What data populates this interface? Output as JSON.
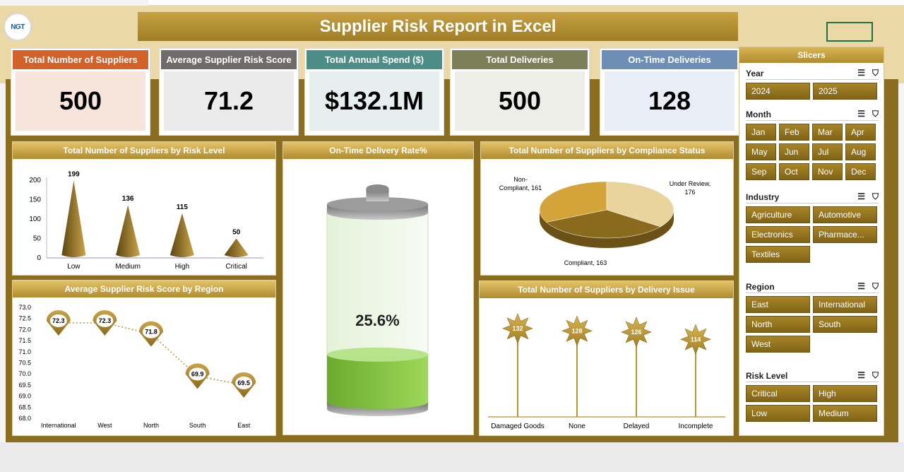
{
  "title": "Supplier Risk Report in Excel",
  "logo_text": "NGT",
  "kpis": [
    {
      "label": "Total Number of Suppliers",
      "value": "500",
      "header_color": "#d2612a",
      "bg": "#f7e4db"
    },
    {
      "label": "Average Supplier Risk Score",
      "value": "71.2",
      "header_color": "#706a6a",
      "bg": "#ebebeb"
    },
    {
      "label": "Total Annual Spend ($)",
      "value": "$132.1M",
      "header_color": "#4c8d88",
      "bg": "#e6efee"
    },
    {
      "label": "Total Deliveries",
      "value": "500",
      "header_color": "#7d7f58",
      "bg": "#edeee7"
    },
    {
      "label": "On-Time Deliveries",
      "value": "128",
      "header_color": "#6e8fb5",
      "bg": "#e9eef6"
    }
  ],
  "panels": {
    "risk_level": "Total Number of Suppliers by Risk Level",
    "ontime": "On-Time Delivery Rate%",
    "compliance": "Total Number of Suppliers by Compliance Status",
    "region": "Average Supplier Risk Score by Region",
    "delivery_issue": "Total Number of Suppliers by Delivery Issue"
  },
  "chart_data": [
    {
      "type": "bar",
      "categories": [
        "Low",
        "Medium",
        "High",
        "Critical"
      ],
      "values": [
        199,
        136,
        115,
        50
      ],
      "ylim": [
        0,
        200
      ],
      "yticks": [
        "0",
        "50",
        "100",
        "150",
        "200"
      ]
    },
    {
      "type": "gauge",
      "value": 0.256,
      "label": "25.6%"
    },
    {
      "type": "pie",
      "slices": [
        {
          "label": "Non-Compliant, 161",
          "value": 161,
          "color": "#d2a43a"
        },
        {
          "label": "Under Review, 176",
          "value": 176,
          "color": "#e8d49c"
        },
        {
          "label": "Compliant, 163",
          "value": 163,
          "color": "#8a6a1d"
        }
      ]
    },
    {
      "type": "line",
      "categories": [
        "International",
        "West",
        "North",
        "South",
        "East"
      ],
      "values": [
        72.3,
        72.3,
        71.8,
        69.9,
        69.5
      ],
      "ylim": [
        68.0,
        73.0
      ],
      "yticks": [
        "68.0",
        "68.5",
        "69.0",
        "69.5",
        "70.0",
        "70.5",
        "71.0",
        "71.5",
        "72.0",
        "72.5",
        "73.0"
      ]
    },
    {
      "type": "bar",
      "categories": [
        "Damaged Goods",
        "None",
        "Delayed",
        "Incomplete"
      ],
      "values": [
        132,
        128,
        126,
        114
      ]
    }
  ],
  "slicers": {
    "title": "Slicers",
    "groups": [
      {
        "name": "Year",
        "items": [
          "2024",
          "2025"
        ],
        "size": "w2"
      },
      {
        "name": "Month",
        "items": [
          "Jan",
          "Feb",
          "Mar",
          "Apr",
          "May",
          "Jun",
          "Jul",
          "Aug",
          "Sep",
          "Oct",
          "Nov",
          "Dec"
        ],
        "size": "w4"
      },
      {
        "name": "Industry",
        "items": [
          "Agriculture",
          "Automotive",
          "Electronics",
          "Pharmace...",
          "Textiles"
        ],
        "size": "w2"
      },
      {
        "name": "Region",
        "items": [
          "East",
          "International",
          "North",
          "South",
          "West"
        ],
        "size": "w2"
      },
      {
        "name": "Risk Level",
        "items": [
          "Critical",
          "High",
          "Low",
          "Medium"
        ],
        "size": "w2"
      }
    ]
  }
}
